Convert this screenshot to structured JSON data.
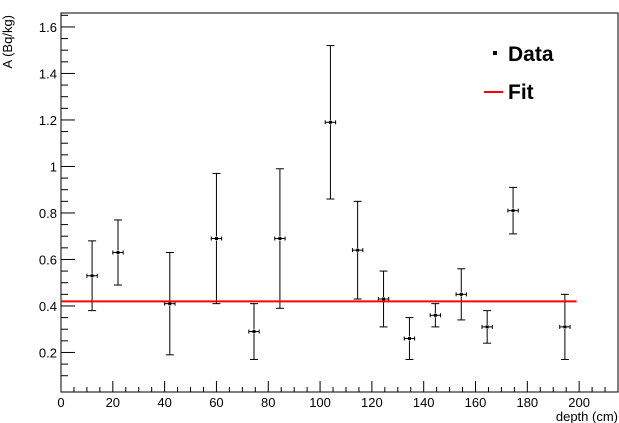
{
  "chart_data": {
    "type": "scatter",
    "xlabel": "depth (cm)",
    "ylabel": "A (Bq/kg)",
    "xlim": [
      0,
      215
    ],
    "ylim": [
      0.03,
      1.66
    ],
    "x_ticks": [
      0,
      20,
      40,
      60,
      80,
      100,
      120,
      140,
      160,
      180,
      200
    ],
    "y_ticks": [
      0.2,
      0.4,
      0.6,
      0.8,
      1,
      1.2,
      1.4,
      1.6
    ],
    "x_tick_labels": [
      "0",
      "20",
      "40",
      "60",
      "80",
      "100",
      "120",
      "140",
      "160",
      "180",
      "200"
    ],
    "y_tick_labels": [
      "0.2",
      "0.4",
      "0.6",
      "0.8",
      "1",
      "1.2",
      "1.4",
      "1.6"
    ],
    "grid": false,
    "legend_position": "top-right",
    "series": [
      {
        "name": "Data",
        "kind": "points-with-error-bars",
        "color": "#000000",
        "points": [
          {
            "x": 12,
            "y": 0.53,
            "ylow": 0.38,
            "yhigh": 0.68,
            "xerr": 2
          },
          {
            "x": 22,
            "y": 0.63,
            "ylow": 0.49,
            "yhigh": 0.77,
            "xerr": 2
          },
          {
            "x": 42,
            "y": 0.41,
            "ylow": 0.19,
            "yhigh": 0.63,
            "xerr": 2
          },
          {
            "x": 60,
            "y": 0.69,
            "ylow": 0.41,
            "yhigh": 0.97,
            "xerr": 2
          },
          {
            "x": 74.5,
            "y": 0.29,
            "ylow": 0.17,
            "yhigh": 0.41,
            "xerr": 2
          },
          {
            "x": 84.5,
            "y": 0.69,
            "ylow": 0.39,
            "yhigh": 0.99,
            "xerr": 2
          },
          {
            "x": 104,
            "y": 1.19,
            "ylow": 0.86,
            "yhigh": 1.52,
            "xerr": 2
          },
          {
            "x": 114.5,
            "y": 0.64,
            "ylow": 0.43,
            "yhigh": 0.85,
            "xerr": 2
          },
          {
            "x": 124.5,
            "y": 0.43,
            "ylow": 0.31,
            "yhigh": 0.55,
            "xerr": 2
          },
          {
            "x": 134.5,
            "y": 0.26,
            "ylow": 0.17,
            "yhigh": 0.35,
            "xerr": 2
          },
          {
            "x": 144.5,
            "y": 0.36,
            "ylow": 0.31,
            "yhigh": 0.41,
            "xerr": 2
          },
          {
            "x": 154.5,
            "y": 0.45,
            "ylow": 0.34,
            "yhigh": 0.56,
            "xerr": 2
          },
          {
            "x": 164.5,
            "y": 0.31,
            "ylow": 0.24,
            "yhigh": 0.38,
            "xerr": 2
          },
          {
            "x": 174.5,
            "y": 0.81,
            "ylow": 0.71,
            "yhigh": 0.91,
            "xerr": 2
          },
          {
            "x": 194.5,
            "y": 0.31,
            "ylow": 0.17,
            "yhigh": 0.45,
            "xerr": 2
          }
        ]
      },
      {
        "name": "Fit",
        "kind": "line",
        "color": "#ff0000",
        "x": [
          0,
          199
        ],
        "y": [
          0.42,
          0.42
        ]
      }
    ],
    "legend": [
      {
        "label": "Data",
        "marker": "point",
        "color": "#000000"
      },
      {
        "label": "Fit",
        "marker": "line",
        "color": "#ff0000"
      }
    ]
  }
}
